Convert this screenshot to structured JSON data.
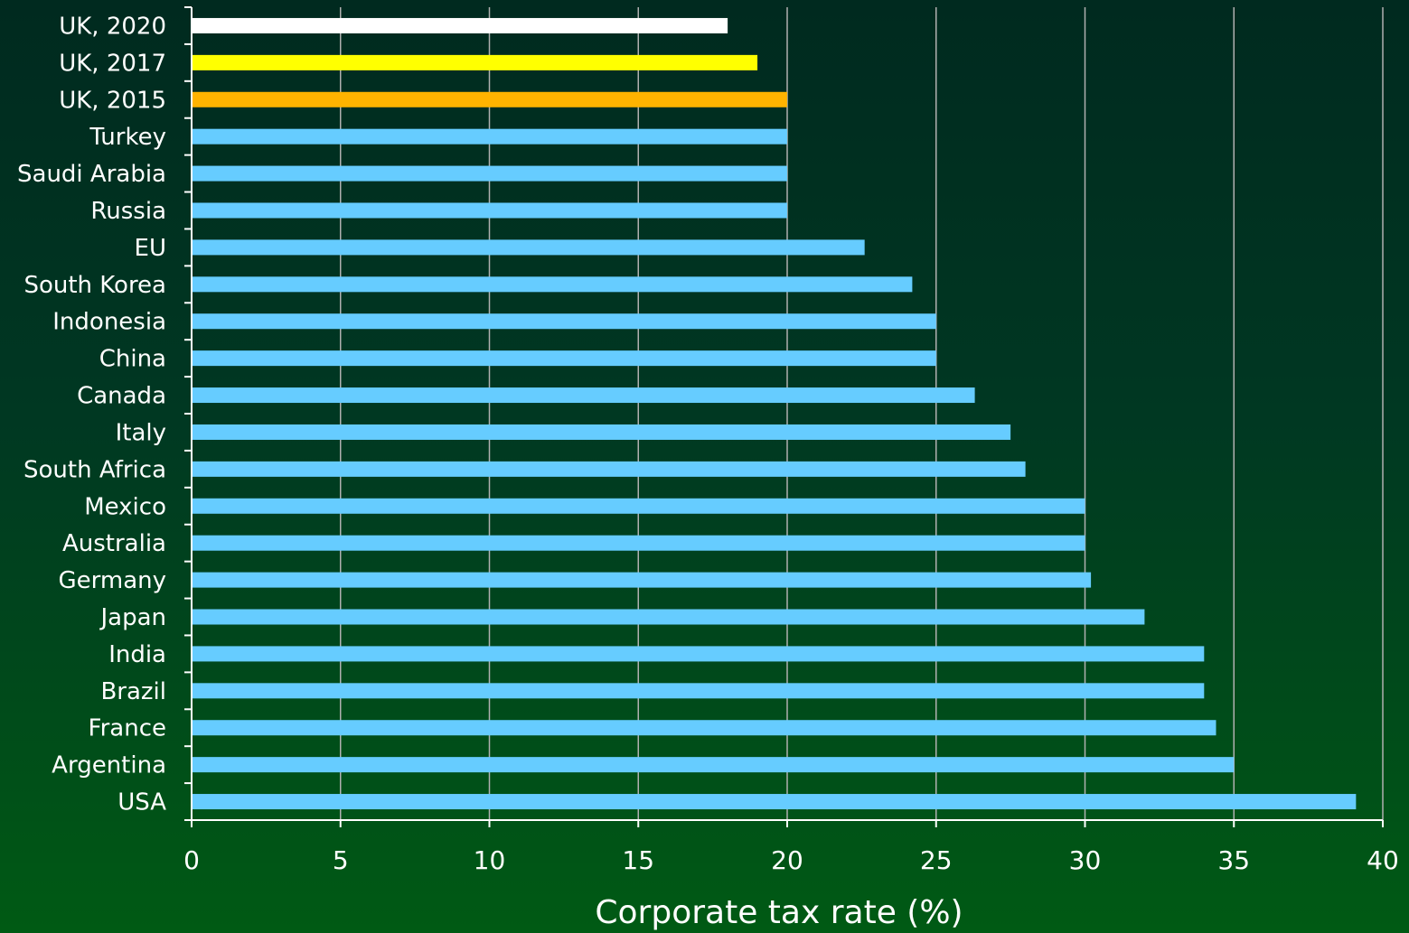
{
  "chart_data": {
    "type": "bar",
    "orientation": "horizontal",
    "categories": [
      "UK, 2020",
      "UK, 2017",
      "UK, 2015",
      "Turkey",
      "Saudi Arabia",
      "Russia",
      "EU",
      "South Korea",
      "Indonesia",
      "China",
      "Canada",
      "Italy",
      "South Africa",
      "Mexico",
      "Australia",
      "Germany",
      "Japan",
      "India",
      "Brazil",
      "France",
      "Argentina",
      "USA"
    ],
    "values": [
      18,
      19,
      20,
      20,
      20,
      20,
      22.6,
      24.2,
      25,
      25,
      26.3,
      27.5,
      28,
      30,
      30,
      30.2,
      32,
      34,
      34,
      34.4,
      35,
      39.1
    ],
    "bar_colors": [
      "#ffffff",
      "#ffff00",
      "#ffb300",
      "#66ccff",
      "#66ccff",
      "#66ccff",
      "#66ccff",
      "#66ccff",
      "#66ccff",
      "#66ccff",
      "#66ccff",
      "#66ccff",
      "#66ccff",
      "#66ccff",
      "#66ccff",
      "#66ccff",
      "#66ccff",
      "#66ccff",
      "#66ccff",
      "#66ccff",
      "#66ccff",
      "#66ccff"
    ],
    "title": "",
    "xlabel": "Corporate tax rate (%)",
    "ylabel": "",
    "xlim": [
      0,
      40
    ],
    "xticks": [
      0,
      5,
      10,
      15,
      20,
      25,
      30,
      35,
      40
    ],
    "grid": true,
    "grid_color": "#b0b0b0",
    "axis_color": "#ffffff",
    "text_color": "#ffffff"
  }
}
